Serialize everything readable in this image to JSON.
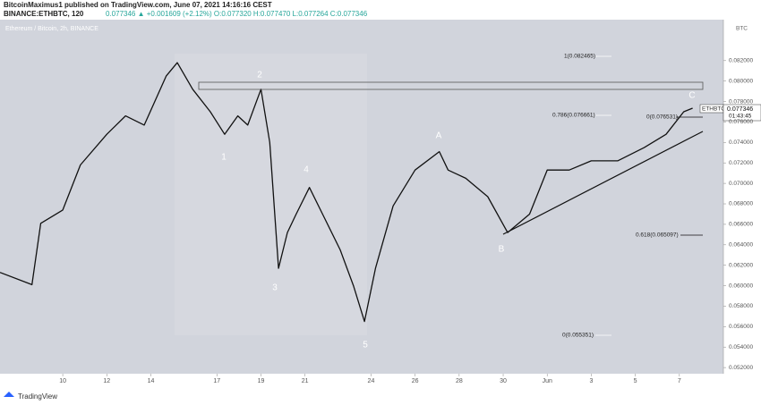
{
  "chart_data": {
    "type": "line",
    "header": {
      "publisher": "BitcoinMaximus1 published on TradingView.com, June 07, 2021 14:16:16 CEST",
      "symbol": "BINANCE:ETHBTC, 120",
      "quote": "0.077346 ▲ +0.001609 (+2.12%) O:0.077320 H:0.077470 L:0.077264 C:0.077346"
    },
    "pane_title": "Ethereum / Bitcoin, 2h, BINANCE",
    "y_label": "BTC",
    "footer": "TradingView",
    "last_symbol": "ETHBTC",
    "last_price": "0.077346",
    "countdown": "01:43:45",
    "wave_labels": [
      "1",
      "2",
      "3",
      "4",
      "5",
      "A",
      "B",
      "C"
    ],
    "fib_labels": [
      "1(0.082465)",
      "0.786(0.076661)",
      "0(0.076531)",
      "0.618(0.065097)",
      "0(0.055351)"
    ],
    "series": [
      {
        "name": "ETHBTC",
        "color": "#111111",
        "x": [
          -2.85,
          -1.4,
          -1.0,
          0,
          0.8,
          2.0,
          2.85,
          3.7,
          4.7,
          5.2,
          5.9,
          6.7,
          7.35,
          7.95,
          8.4,
          9.0,
          9.4,
          9.8,
          10.2,
          10.6,
          11.2,
          11.8,
          12.6,
          13.2,
          13.7,
          14.2,
          15.0,
          16.0,
          17.1,
          17.5,
          18.3,
          19.3,
          20.2,
          21.2,
          22.0,
          23.0,
          24.0,
          25.2,
          26.4,
          27.4,
          28.2,
          28.6
        ],
        "values": [
          0.0613,
          0.0601,
          0.0661,
          0.0674,
          0.0718,
          0.0748,
          0.0766,
          0.0757,
          0.0805,
          0.0818,
          0.0792,
          0.077,
          0.0748,
          0.0766,
          0.0757,
          0.0792,
          0.074,
          0.0617,
          0.0652,
          0.067,
          0.0696,
          0.067,
          0.0635,
          0.06,
          0.0565,
          0.0617,
          0.0678,
          0.0713,
          0.0731,
          0.0713,
          0.0705,
          0.0687,
          0.0652,
          0.067,
          0.0713,
          0.0713,
          0.0722,
          0.0722,
          0.0735,
          0.0748,
          0.077,
          0.07735
        ]
      }
    ],
    "xlim": [
      -2.85,
      30
    ],
    "xticks": [
      {
        "value": 0,
        "label": "10"
      },
      {
        "value": 2,
        "label": "12"
      },
      {
        "value": 4,
        "label": "14"
      },
      {
        "value": 7,
        "label": "17"
      },
      {
        "value": 9,
        "label": "19"
      },
      {
        "value": 11,
        "label": "21"
      },
      {
        "value": 14,
        "label": "24"
      },
      {
        "value": 16,
        "label": "26"
      },
      {
        "value": 18,
        "label": "28"
      },
      {
        "value": 20,
        "label": "30"
      },
      {
        "value": 22,
        "label": "Jun"
      },
      {
        "value": 24,
        "label": "3"
      },
      {
        "value": 26,
        "label": "5"
      },
      {
        "value": 28,
        "label": "7"
      }
    ],
    "ylim": [
      0.0514,
      0.086
    ],
    "yticks": [
      {
        "value": 0.082,
        "label": "0.082000"
      },
      {
        "value": 0.08,
        "label": "0.080000"
      },
      {
        "value": 0.078,
        "label": "0.078000"
      },
      {
        "value": 0.076,
        "label": "0.076000"
      },
      {
        "value": 0.074,
        "label": "0.074000"
      },
      {
        "value": 0.072,
        "label": "0.072000"
      },
      {
        "value": 0.07,
        "label": "0.070000"
      },
      {
        "value": 0.068,
        "label": "0.068000"
      },
      {
        "value": 0.066,
        "label": "0.066000"
      },
      {
        "value": 0.064,
        "label": "0.064000"
      },
      {
        "value": 0.062,
        "label": "0.062000"
      },
      {
        "value": 0.06,
        "label": "0.060000"
      },
      {
        "value": 0.058,
        "label": "0.058000"
      },
      {
        "value": 0.056,
        "label": "0.056000"
      },
      {
        "value": 0.054,
        "label": "0.054000"
      },
      {
        "value": 0.052,
        "label": "0.052000"
      }
    ],
    "grid": false
  }
}
